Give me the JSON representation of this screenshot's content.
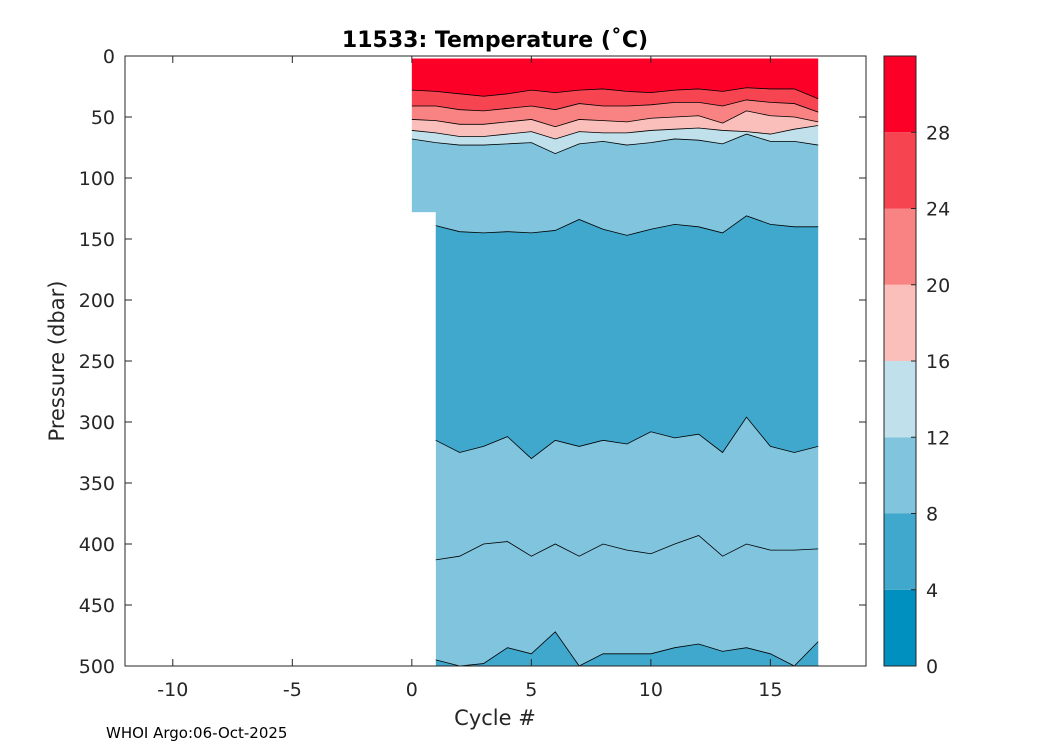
{
  "chart_data": {
    "type": "contour",
    "title": "11533:  Temperature (˚C)",
    "xlabel": "Cycle #",
    "ylabel": "Pressure (dbar)",
    "xlim": [
      -12,
      19
    ],
    "ylim": [
      500,
      0
    ],
    "x_ticks": [
      -10,
      -5,
      0,
      5,
      10,
      15
    ],
    "y_ticks": [
      0,
      50,
      100,
      150,
      200,
      250,
      300,
      350,
      400,
      450,
      500
    ],
    "colorbar": {
      "levels": [
        0,
        4,
        8,
        12,
        16,
        20,
        24,
        28,
        32
      ],
      "tick_labels": [
        "0",
        "4",
        "8",
        "12",
        "16",
        "20",
        "24",
        "28"
      ],
      "colors": [
        "#0090bf",
        "#3fa8cc",
        "#80c4de",
        "#c0e0ec",
        "#fbbfbb",
        "#f98282",
        "#f64450",
        "#fd0028"
      ]
    },
    "x": [
      0,
      1,
      2,
      3,
      4,
      5,
      6,
      7,
      8,
      9,
      10,
      11,
      12,
      13,
      14,
      15,
      16,
      17
    ],
    "isotherms": [
      {
        "temperature": 28,
        "depths": [
          28,
          29,
          31,
          33,
          31,
          28,
          30,
          28,
          27,
          29,
          30,
          28,
          27,
          29,
          26,
          27,
          27,
          35
        ]
      },
      {
        "temperature": 24,
        "depths": [
          41,
          41,
          44,
          45,
          43,
          41,
          44,
          39,
          41,
          41,
          40,
          38,
          38,
          41,
          36,
          38,
          39,
          46
        ]
      },
      {
        "temperature": 20,
        "depths": [
          52,
          53,
          56,
          56,
          54,
          52,
          58,
          52,
          53,
          54,
          51,
          50,
          49,
          55,
          45,
          49,
          50,
          54
        ]
      },
      {
        "temperature": 16,
        "depths": [
          61,
          63,
          66,
          66,
          64,
          62,
          68,
          62,
          63,
          63,
          61,
          60,
          59,
          61,
          62,
          64,
          60,
          57
        ]
      },
      {
        "temperature": 12,
        "depths": [
          68,
          71,
          73,
          73,
          72,
          71,
          80,
          72,
          70,
          73,
          71,
          68,
          69,
          72,
          64,
          70,
          70,
          73
        ]
      },
      {
        "temperature": 8,
        "depths": [
          null,
          139,
          144,
          145,
          144,
          145,
          143,
          134,
          142,
          147,
          142,
          138,
          140,
          145,
          131,
          138,
          140,
          140
        ]
      },
      {
        "temperature": 4,
        "depths": [
          null,
          315,
          325,
          320,
          312,
          330,
          315,
          320,
          315,
          318,
          308,
          313,
          310,
          325,
          296,
          320,
          325,
          320
        ]
      }
    ],
    "lower_contour_line": [
      null,
      413,
      410,
      400,
      398,
      410,
      400,
      410,
      400,
      405,
      408,
      400,
      393,
      410,
      400,
      405,
      405,
      404
    ],
    "bottom_contour_line": [
      null,
      495,
      500,
      498,
      485,
      490,
      472,
      500,
      490,
      490,
      490,
      485,
      482,
      488,
      485,
      490,
      500,
      480
    ],
    "data_top_depth": 2
  },
  "footer": {
    "text": "WHOI Argo:06-Oct-2025"
  }
}
